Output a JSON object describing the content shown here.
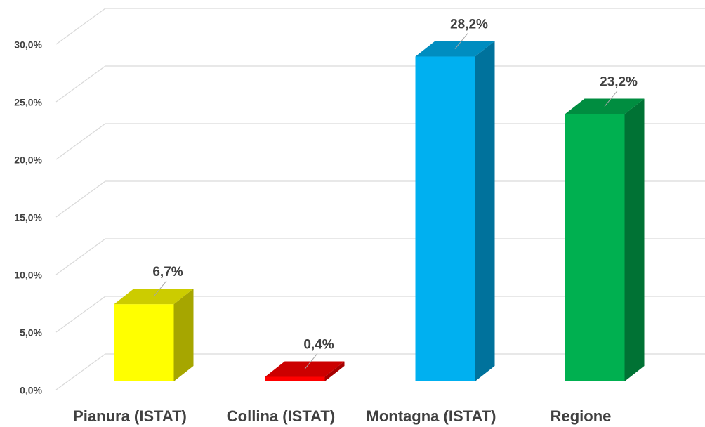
{
  "chart_data": {
    "type": "bar3d",
    "categories": [
      "Pianura (ISTAT)",
      "Collina (ISTAT)",
      "Montagna (ISTAT)",
      "Regione"
    ],
    "values": [
      6.7,
      0.4,
      28.2,
      23.2
    ],
    "value_labels": [
      "6,7%",
      "0,4%",
      "28,2%",
      "23,2%"
    ],
    "colors": [
      "#ffff00",
      "#ff0000",
      "#00b0f0",
      "#00b050"
    ],
    "ylim": [
      0,
      30
    ],
    "yticks": [
      {
        "value": 0,
        "label": "0,0%"
      },
      {
        "value": 5,
        "label": "5,0%"
      },
      {
        "value": 10,
        "label": "10,0%"
      },
      {
        "value": 15,
        "label": "15,0%"
      },
      {
        "value": 20,
        "label": "20,0%"
      },
      {
        "value": 25,
        "label": "25,0%"
      },
      {
        "value": 30,
        "label": "30,0%"
      }
    ],
    "grid": true
  }
}
